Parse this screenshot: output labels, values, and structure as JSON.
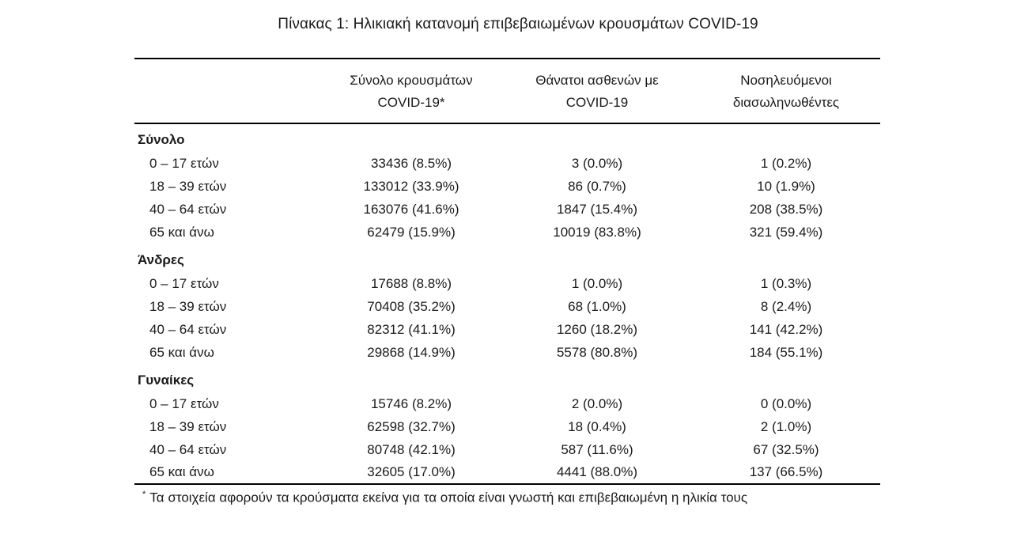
{
  "title": "Πίνακας 1: Ηλικιακή κατανομή επιβεβαιωμένων κρουσμάτων COVID-19",
  "table": {
    "col_headers": [
      {
        "line1": "Σύνολο κρουσμάτων",
        "line2": "COVID-19*"
      },
      {
        "line1": "Θάνατοι ασθενών με",
        "line2": "COVID-19"
      },
      {
        "line1": "Νοσηλευόμενοι",
        "line2": "διασωληνωθέντες"
      }
    ],
    "sections": [
      {
        "label": "Σύνολο",
        "rows": [
          {
            "age": "0 – 17 ετών",
            "cases": "33436 (8.5%)",
            "deaths": "3 (0.0%)",
            "intubated": "1 (0.2%)"
          },
          {
            "age": "18 – 39 ετών",
            "cases": "133012 (33.9%)",
            "deaths": "86 (0.7%)",
            "intubated": "10 (1.9%)"
          },
          {
            "age": "40 – 64 ετών",
            "cases": "163076 (41.6%)",
            "deaths": "1847 (15.4%)",
            "intubated": "208 (38.5%)"
          },
          {
            "age": "65 και άνω",
            "cases": "62479 (15.9%)",
            "deaths": "10019 (83.8%)",
            "intubated": "321 (59.4%)"
          }
        ]
      },
      {
        "label": "Άνδρες",
        "rows": [
          {
            "age": "0 – 17 ετών",
            "cases": "17688 (8.8%)",
            "deaths": "1 (0.0%)",
            "intubated": "1 (0.3%)"
          },
          {
            "age": "18 – 39 ετών",
            "cases": "70408 (35.2%)",
            "deaths": "68 (1.0%)",
            "intubated": "8 (2.4%)"
          },
          {
            "age": "40 – 64 ετών",
            "cases": "82312 (41.1%)",
            "deaths": "1260 (18.2%)",
            "intubated": "141 (42.2%)"
          },
          {
            "age": "65 και άνω",
            "cases": "29868 (14.9%)",
            "deaths": "5578 (80.8%)",
            "intubated": "184 (55.1%)"
          }
        ]
      },
      {
        "label": "Γυναίκες",
        "rows": [
          {
            "age": "0 – 17 ετών",
            "cases": "15746 (8.2%)",
            "deaths": "2 (0.0%)",
            "intubated": "0 (0.0%)"
          },
          {
            "age": "18 – 39 ετών",
            "cases": "62598 (32.7%)",
            "deaths": "18 (0.4%)",
            "intubated": "2 (1.0%)"
          },
          {
            "age": "40 – 64 ετών",
            "cases": "80748 (42.1%)",
            "deaths": "587 (11.6%)",
            "intubated": "67 (32.5%)"
          },
          {
            "age": "65 και άνω",
            "cases": "32605 (17.0%)",
            "deaths": "4441 (88.0%)",
            "intubated": "137 (66.5%)"
          }
        ]
      }
    ]
  },
  "footnote": {
    "marker": "*",
    "text": "Τα στοιχεία αφορούν τα κρούσματα εκείνα για τα οποία είναι γνωστή και επιβεβαιωμένη η ηλικία τους"
  },
  "colors": {
    "text": "#1a1a1a",
    "rule": "#000000",
    "background": "#ffffff"
  }
}
